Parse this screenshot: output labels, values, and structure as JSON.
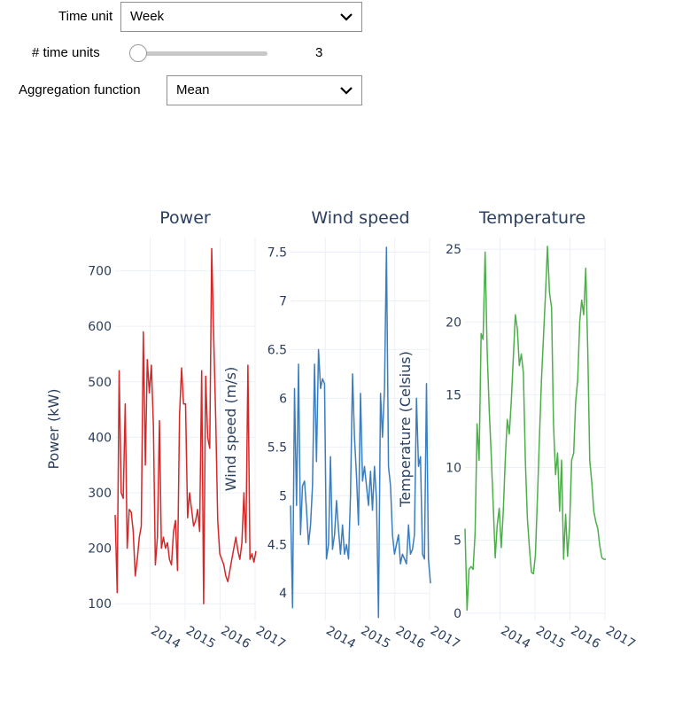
{
  "controls": {
    "time_unit": {
      "label": "Time unit",
      "value": "Week"
    },
    "n_units": {
      "label": "# time units",
      "value": "3",
      "fraction": 0.0
    },
    "aggregation": {
      "label": "Aggregation function",
      "value": "Mean"
    }
  },
  "chart_data": [
    {
      "type": "line",
      "title": "Power",
      "ylabel": "Power (kW)",
      "color": "#d62728",
      "ylim": [
        70,
        760
      ],
      "yticks": [
        100,
        200,
        300,
        400,
        500,
        600,
        700
      ],
      "xlim": [
        "2013-01-01",
        "2017-01-10"
      ],
      "xticks": [
        {
          "value": "2014-01-01",
          "label": "2014"
        },
        {
          "value": "2015-01-01",
          "label": "2015"
        },
        {
          "value": "2016-01-01",
          "label": "2016"
        },
        {
          "value": "2017-01-01",
          "label": "2017"
        }
      ],
      "x": [
        "2013-01-01",
        "2013-01-22",
        "2013-02-12",
        "2013-03-05",
        "2013-03-26",
        "2013-04-16",
        "2013-05-07",
        "2013-05-28",
        "2013-06-18",
        "2013-07-09",
        "2013-07-30",
        "2013-08-20",
        "2013-09-10",
        "2013-10-01",
        "2013-10-22",
        "2013-11-12",
        "2013-12-03",
        "2013-12-24",
        "2014-01-14",
        "2014-02-04",
        "2014-02-25",
        "2014-03-18",
        "2014-04-08",
        "2014-04-29",
        "2014-05-20",
        "2014-06-10",
        "2014-07-01",
        "2014-07-22",
        "2014-08-12",
        "2014-09-02",
        "2014-09-23",
        "2014-10-14",
        "2014-11-04",
        "2014-11-25",
        "2014-12-16",
        "2015-01-06",
        "2015-01-27",
        "2015-02-17",
        "2015-03-10",
        "2015-03-31",
        "2015-04-21",
        "2015-05-12",
        "2015-06-02",
        "2015-06-23",
        "2015-07-14",
        "2015-08-04",
        "2015-08-25",
        "2015-09-15",
        "2015-10-06",
        "2015-10-27",
        "2015-11-17",
        "2015-12-08",
        "2015-12-29",
        "2016-01-19",
        "2016-02-09",
        "2016-03-01",
        "2016-03-22",
        "2016-04-12",
        "2016-05-03",
        "2016-05-24",
        "2016-06-14",
        "2016-07-05",
        "2016-07-26",
        "2016-08-16",
        "2016-09-06",
        "2016-09-27",
        "2016-10-18",
        "2016-11-08",
        "2016-11-29",
        "2016-12-20",
        "2017-01-10"
      ],
      "y": [
        260,
        120,
        520,
        300,
        290,
        460,
        200,
        270,
        265,
        230,
        150,
        180,
        220,
        240,
        590,
        350,
        540,
        480,
        530,
        420,
        170,
        220,
        430,
        200,
        220,
        200,
        210,
        180,
        170,
        230,
        250,
        160,
        440,
        525,
        460,
        460,
        255,
        300,
        270,
        240,
        250,
        270,
        230,
        520,
        100,
        510,
        400,
        380,
        740,
        580,
        430,
        250,
        190,
        180,
        170,
        150,
        140,
        160,
        180,
        200,
        220,
        195,
        180,
        210,
        300,
        210,
        530,
        180,
        190,
        175,
        195
      ]
    },
    {
      "type": "line",
      "title": "Wind speed",
      "ylabel": "Wind speed (m/s)",
      "color": "#3a7ebf",
      "ylim": [
        3.72,
        7.65
      ],
      "yticks": [
        4,
        4.5,
        5,
        5.5,
        6,
        6.5,
        7,
        7.5
      ],
      "xlim": [
        "2013-01-01",
        "2017-01-10"
      ],
      "xticks": [
        {
          "value": "2014-01-01",
          "label": "2014"
        },
        {
          "value": "2015-01-01",
          "label": "2015"
        },
        {
          "value": "2016-01-01",
          "label": "2016"
        },
        {
          "value": "2017-01-01",
          "label": "2017"
        }
      ],
      "x": [
        "2013-01-01",
        "2013-01-22",
        "2013-02-12",
        "2013-03-05",
        "2013-03-26",
        "2013-04-16",
        "2013-05-07",
        "2013-05-28",
        "2013-06-18",
        "2013-07-09",
        "2013-07-30",
        "2013-08-20",
        "2013-09-10",
        "2013-10-01",
        "2013-10-22",
        "2013-11-12",
        "2013-12-03",
        "2013-12-24",
        "2014-01-14",
        "2014-02-04",
        "2014-02-25",
        "2014-03-18",
        "2014-04-08",
        "2014-04-29",
        "2014-05-20",
        "2014-06-10",
        "2014-07-01",
        "2014-07-22",
        "2014-08-12",
        "2014-09-02",
        "2014-09-23",
        "2014-10-14",
        "2014-11-04",
        "2014-11-25",
        "2014-12-16",
        "2015-01-06",
        "2015-01-27",
        "2015-02-17",
        "2015-03-10",
        "2015-03-31",
        "2015-04-21",
        "2015-05-12",
        "2015-06-02",
        "2015-06-23",
        "2015-07-14",
        "2015-08-04",
        "2015-08-25",
        "2015-09-15",
        "2015-10-06",
        "2015-10-27",
        "2015-11-17",
        "2015-12-08",
        "2015-12-29",
        "2016-01-19",
        "2016-02-09",
        "2016-03-01",
        "2016-03-22",
        "2016-04-12",
        "2016-05-03",
        "2016-05-24",
        "2016-06-14",
        "2016-07-05",
        "2016-07-26",
        "2016-08-16",
        "2016-09-06",
        "2016-09-27",
        "2016-10-18",
        "2016-11-08",
        "2016-11-29",
        "2016-12-20",
        "2017-01-10"
      ],
      "y": [
        4.9,
        3.85,
        6.1,
        4.9,
        6.35,
        4.6,
        5.1,
        5.15,
        4.85,
        4.5,
        4.7,
        5.1,
        6.35,
        5.35,
        6.5,
        6.1,
        6.2,
        6.15,
        4.35,
        4.5,
        5.4,
        4.45,
        4.6,
        4.95,
        4.65,
        4.4,
        4.7,
        4.4,
        4.5,
        4.35,
        5.0,
        6.25,
        5.6,
        5.2,
        4.7,
        6.05,
        5.15,
        5.3,
        5.1,
        4.9,
        5.25,
        4.85,
        5.3,
        4.95,
        3.75,
        6.05,
        5.6,
        6.1,
        7.55,
        5.3,
        5.1,
        4.6,
        4.4,
        4.5,
        4.6,
        4.3,
        4.4,
        4.35,
        4.3,
        4.7,
        4.4,
        4.45,
        4.6,
        6.0,
        5.3,
        5.4,
        4.4,
        4.35,
        6.15,
        4.35,
        4.1
      ]
    },
    {
      "type": "line",
      "title": "Temperature",
      "ylabel": "Temperature (Celsius)",
      "color": "#4daf4a",
      "ylim": [
        -0.5,
        25.8
      ],
      "yticks": [
        0,
        5,
        10,
        15,
        20,
        25
      ],
      "xlim": [
        "2013-01-01",
        "2017-01-10"
      ],
      "xticks": [
        {
          "value": "2014-01-01",
          "label": "2014"
        },
        {
          "value": "2015-01-01",
          "label": "2015"
        },
        {
          "value": "2016-01-01",
          "label": "2016"
        },
        {
          "value": "2017-01-01",
          "label": "2017"
        }
      ],
      "x": [
        "2013-01-01",
        "2013-01-22",
        "2013-02-12",
        "2013-03-05",
        "2013-03-26",
        "2013-04-16",
        "2013-05-07",
        "2013-05-28",
        "2013-06-18",
        "2013-07-09",
        "2013-07-30",
        "2013-08-20",
        "2013-09-10",
        "2013-10-01",
        "2013-10-22",
        "2013-11-12",
        "2013-12-03",
        "2013-12-24",
        "2014-01-14",
        "2014-02-04",
        "2014-02-25",
        "2014-03-18",
        "2014-04-08",
        "2014-04-29",
        "2014-05-20",
        "2014-06-10",
        "2014-07-01",
        "2014-07-22",
        "2014-08-12",
        "2014-09-02",
        "2014-09-23",
        "2014-10-14",
        "2014-11-04",
        "2014-11-25",
        "2014-12-16",
        "2015-01-06",
        "2015-01-27",
        "2015-02-17",
        "2015-03-10",
        "2015-03-31",
        "2015-04-21",
        "2015-05-12",
        "2015-06-02",
        "2015-06-23",
        "2015-07-14",
        "2015-08-04",
        "2015-08-25",
        "2015-09-15",
        "2015-10-06",
        "2015-10-27",
        "2015-11-17",
        "2015-12-08",
        "2015-12-29",
        "2016-01-19",
        "2016-02-09",
        "2016-03-01",
        "2016-03-22",
        "2016-04-12",
        "2016-05-03",
        "2016-05-24",
        "2016-06-14",
        "2016-07-05",
        "2016-07-26",
        "2016-08-16",
        "2016-09-06",
        "2016-09-27",
        "2016-10-18",
        "2016-11-08",
        "2016-11-29",
        "2016-12-20",
        "2017-01-10"
      ],
      "y": [
        5.8,
        0.2,
        3.0,
        3.2,
        3.0,
        5.5,
        13.0,
        10.5,
        19.2,
        18.8,
        24.8,
        18.0,
        14.0,
        11.0,
        7.5,
        3.8,
        6.0,
        7.2,
        4.5,
        7.0,
        10.5,
        13.3,
        12.3,
        14.5,
        17.5,
        20.5,
        19.5,
        17.0,
        17.8,
        16.5,
        10.5,
        6.5,
        4.5,
        2.8,
        2.7,
        4.0,
        8.0,
        12.0,
        16.0,
        19.0,
        22.0,
        25.2,
        22.0,
        21.0,
        13.0,
        9.5,
        11.0,
        7.0,
        10.5,
        3.7,
        6.8,
        3.9,
        6.0,
        10.5,
        11.0,
        14.5,
        16.0,
        20.0,
        21.5,
        20.5,
        23.7,
        18.0,
        10.5,
        9.0,
        7.0,
        6.3,
        5.8,
        4.6,
        3.8,
        3.7,
        3.7
      ]
    }
  ]
}
